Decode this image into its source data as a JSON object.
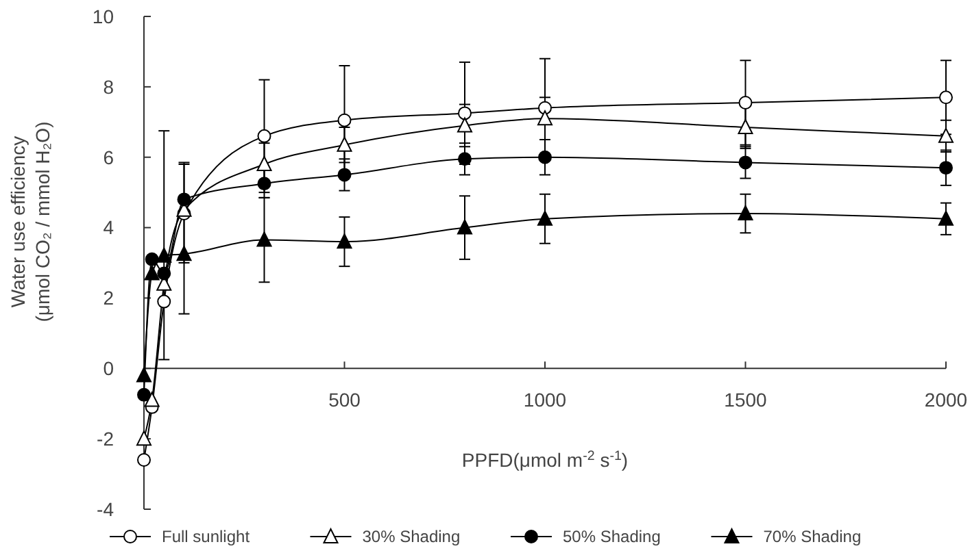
{
  "chart_data": {
    "type": "line",
    "xlabel": "PPFD(μmol m$^{-2}$ s$^{-1}$)",
    "ylabel": "Water use efficiency\n(μmol CO₂ / mmol H₂O)",
    "x": [
      0,
      20,
      50,
      100,
      300,
      500,
      800,
      1000,
      1500,
      2000
    ],
    "xlim": [
      0,
      2000
    ],
    "xticks": [
      500,
      1000,
      1500,
      2000
    ],
    "ylim": [
      -4,
      10
    ],
    "yticks": [
      -4,
      -2,
      0,
      2,
      4,
      6,
      8,
      10
    ],
    "grid": false,
    "legend": "bottom",
    "series": [
      {
        "name": "Full sunlight",
        "color": "#ffffff",
        "marker": "circle",
        "values": [
          -2.6,
          -1.1,
          1.9,
          4.4,
          6.6,
          7.05,
          7.25,
          7.4,
          7.55,
          7.7
        ],
        "errors": [
          null,
          null,
          [
            0.25,
            6.75
          ],
          1.4,
          1.6,
          1.55,
          1.45,
          1.4,
          1.2,
          1.05
        ]
      },
      {
        "name": "30% Shading",
        "color": "#ffffff",
        "marker": "triangle",
        "values": [
          -2.0,
          -0.9,
          2.4,
          4.5,
          5.8,
          6.35,
          6.9,
          7.1,
          6.85,
          6.6
        ],
        "errors": [
          null,
          null,
          null,
          null,
          0.6,
          0.5,
          0.6,
          0.6,
          0.6,
          0.45
        ]
      },
      {
        "name": "50% Shading",
        "color": "#000000",
        "marker": "circle",
        "values": [
          -0.75,
          3.1,
          2.7,
          4.8,
          5.25,
          5.5,
          5.95,
          6.0,
          5.85,
          5.7
        ],
        "errors": [
          null,
          null,
          null,
          null,
          0.4,
          0.45,
          0.45,
          0.5,
          0.45,
          0.5
        ]
      },
      {
        "name": "70% Shading",
        "color": "#000000",
        "marker": "triangle",
        "values": [
          -0.2,
          2.7,
          3.2,
          3.25,
          3.65,
          3.6,
          4.0,
          4.25,
          4.4,
          4.25
        ],
        "errors": [
          null,
          null,
          null,
          [
            1.55,
            5.85
          ],
          1.2,
          0.7,
          0.9,
          0.7,
          0.55,
          0.45
        ]
      }
    ]
  }
}
